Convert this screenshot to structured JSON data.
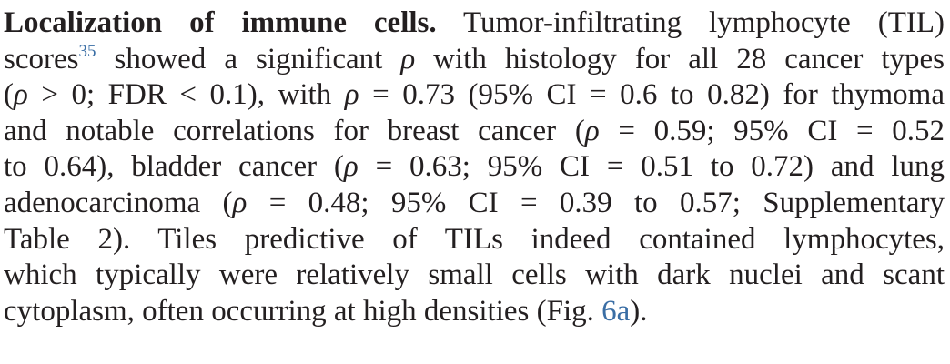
{
  "section": {
    "heading": "Localization of immune cells.",
    "lines": [
      [
        {
          "t": "h",
          "v": "Localization of immune cells."
        },
        {
          "t": "x",
          "v": " Tumor-infiltrating lymphocyte (TIL)"
        }
      ],
      [
        {
          "t": "x",
          "v": "scores"
        },
        {
          "t": "sup",
          "v": "35"
        },
        {
          "t": "x",
          "v": " showed a significant "
        },
        {
          "t": "i",
          "v": "ρ"
        },
        {
          "t": "x",
          "v": " with histology for all 28 cancer types"
        }
      ],
      [
        {
          "t": "x",
          "v": "("
        },
        {
          "t": "i",
          "v": "ρ"
        },
        {
          "t": "x",
          "v": " > 0; FDR < 0.1), with "
        },
        {
          "t": "i",
          "v": "ρ"
        },
        {
          "t": "x",
          "v": " = 0.73 (95% CI = 0.6 to 0.82) for thymoma"
        }
      ],
      [
        {
          "t": "x",
          "v": "and notable correlations for breast cancer ("
        },
        {
          "t": "i",
          "v": "ρ"
        },
        {
          "t": "x",
          "v": " = 0.59; 95% CI = 0.52"
        }
      ],
      [
        {
          "t": "x",
          "v": "to 0.64), bladder cancer ("
        },
        {
          "t": "i",
          "v": "ρ"
        },
        {
          "t": "x",
          "v": " = 0.63; 95% CI = 0.51 to 0.72) and lung"
        }
      ],
      [
        {
          "t": "x",
          "v": "adenocarcinoma ("
        },
        {
          "t": "i",
          "v": "ρ"
        },
        {
          "t": "x",
          "v": " = 0.48; 95% CI = 0.39 to 0.57; Supplementary"
        }
      ],
      [
        {
          "t": "x",
          "v": "Table 2). Tiles predictive of TILs indeed contained lymphocytes,"
        }
      ],
      [
        {
          "t": "x",
          "v": "which typically were relatively small cells with dark nuclei and scant"
        }
      ],
      [
        {
          "t": "x",
          "v": "cytoplasm, often occurring at high densities (Fig. "
        },
        {
          "t": "ref",
          "v": "6a"
        },
        {
          "t": "x",
          "v": ")."
        }
      ]
    ]
  }
}
